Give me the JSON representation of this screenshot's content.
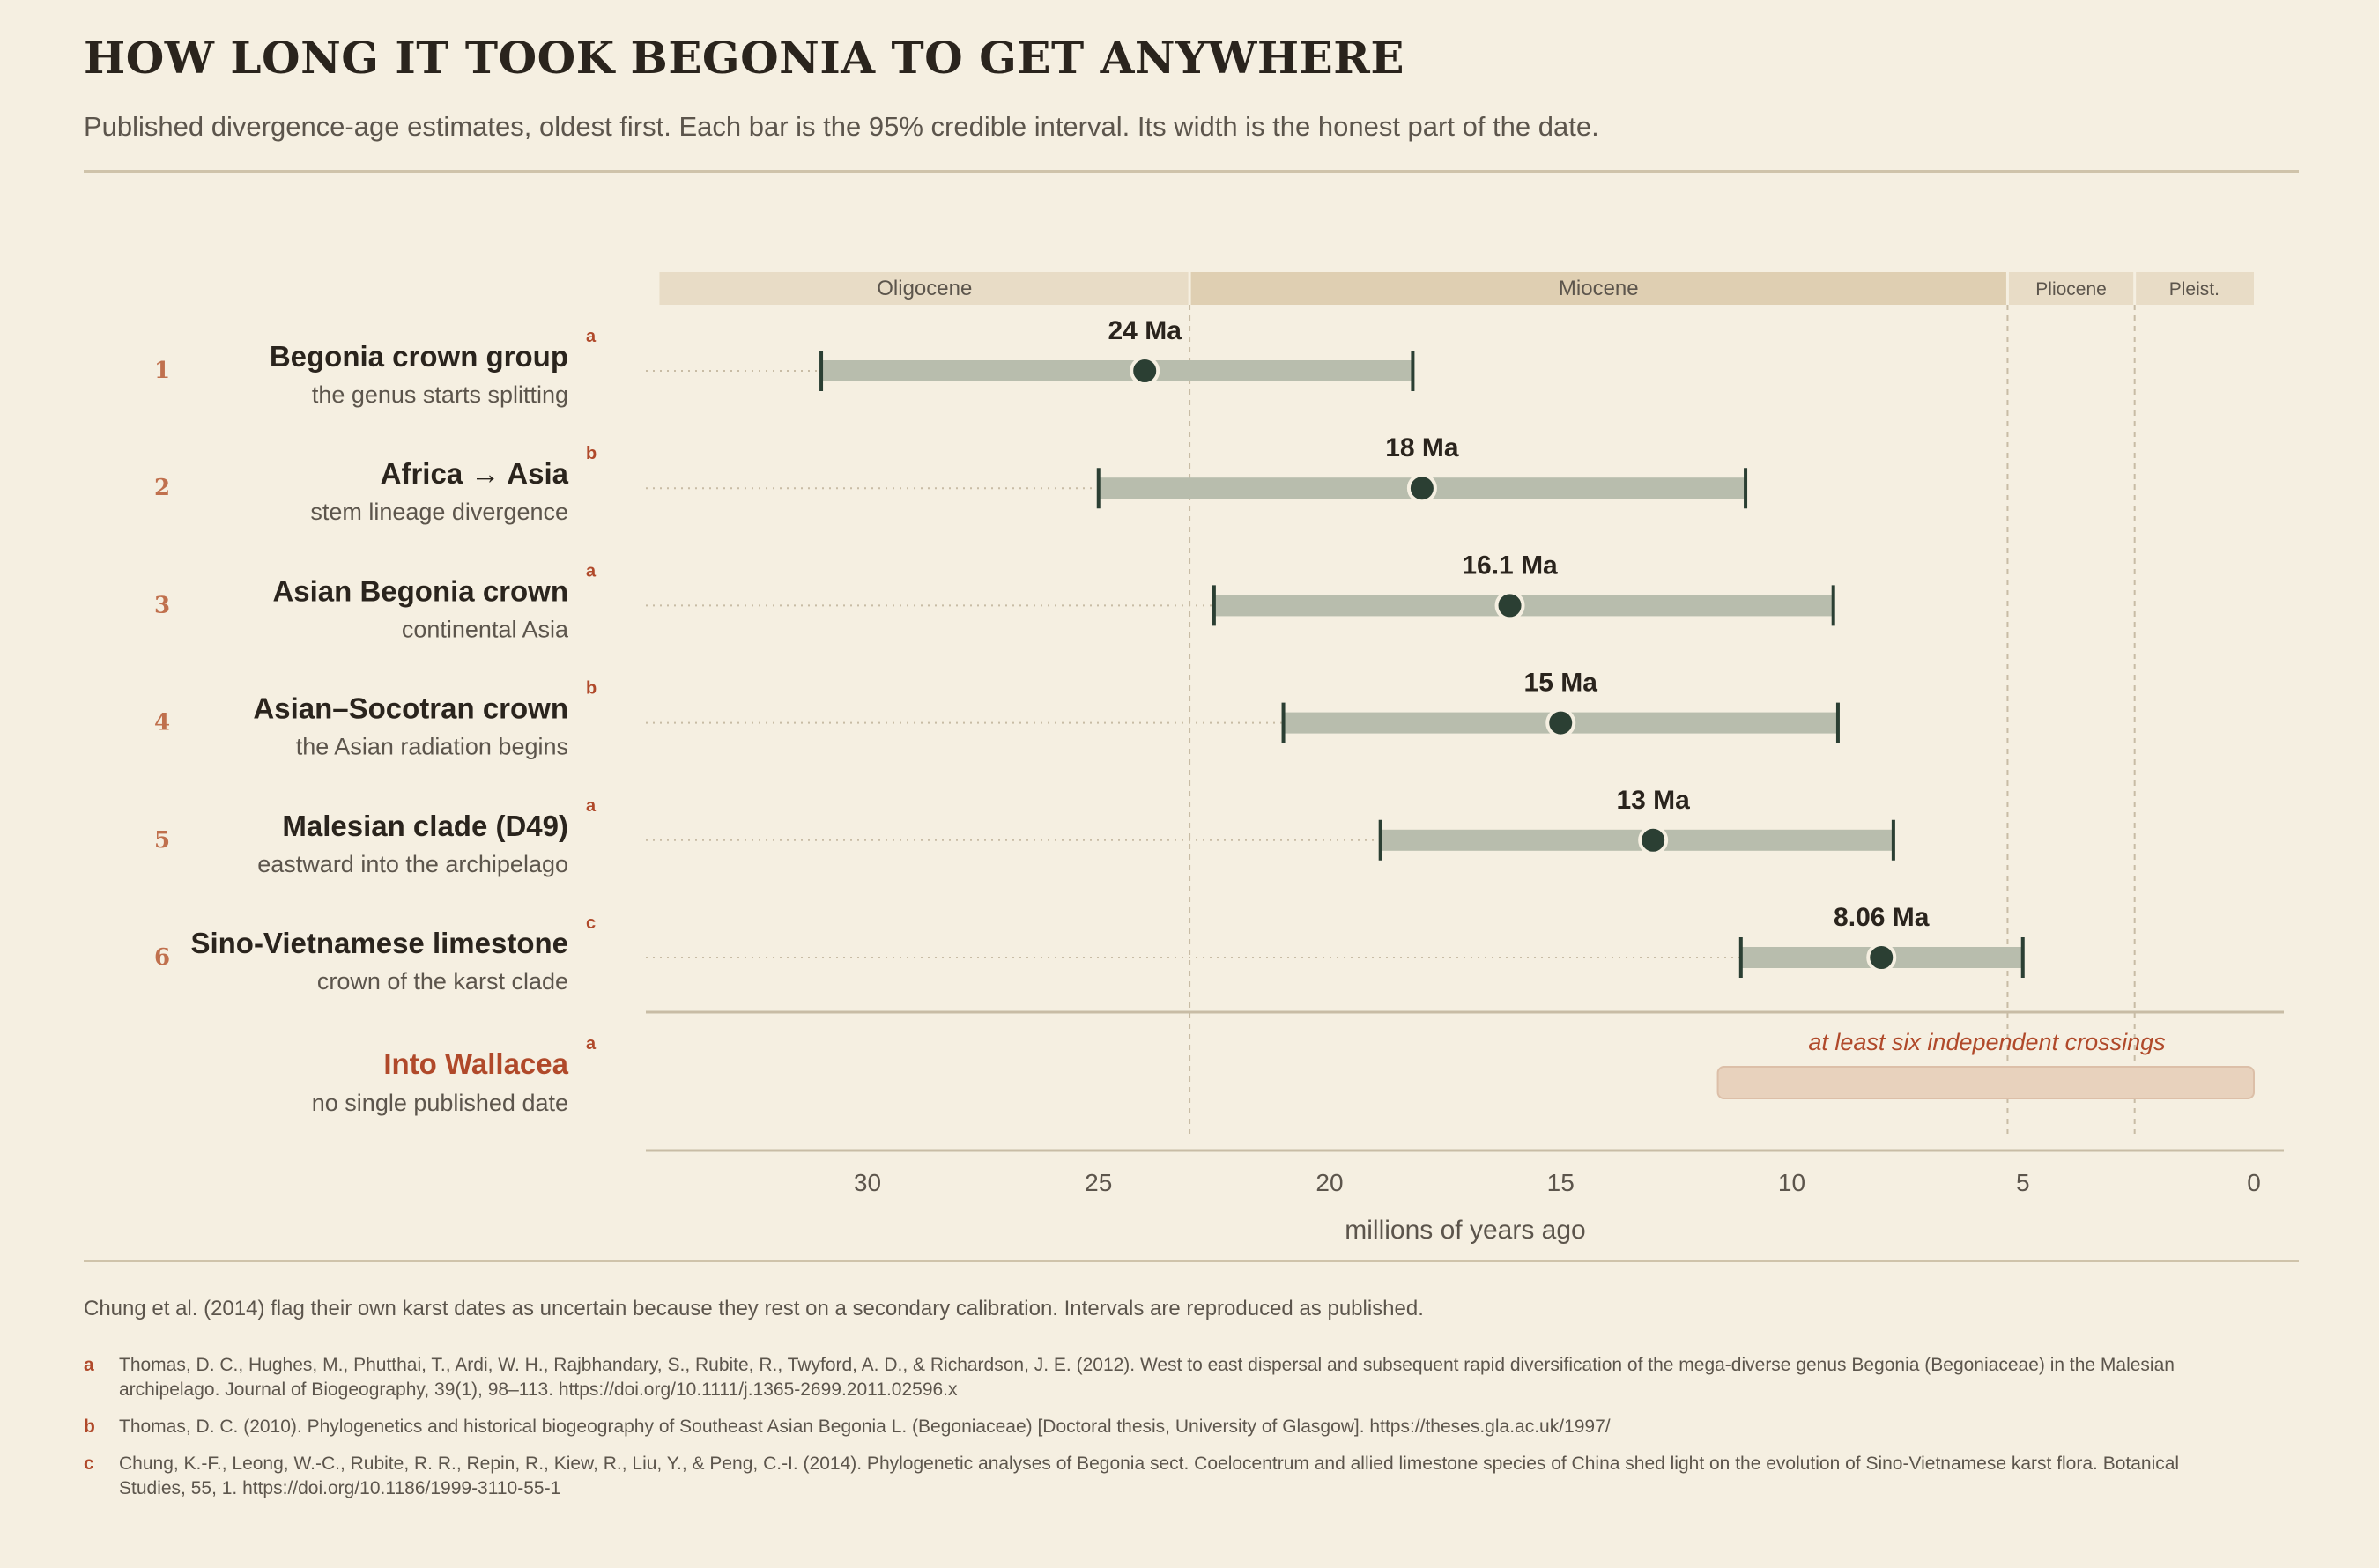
{
  "header": {
    "title": "HOW LONG IT TOOK BEGONIA TO GET ANYWHERE",
    "subtitle": "Published divergence-age estimates, oldest first. Each bar is the 95% credible interval. Its width is the honest part of the date."
  },
  "colors": {
    "background": "#f5efe1",
    "interval_bar": "#b8bdad",
    "point_and_whiskers": "#2b3f33",
    "accent": "#b0492a",
    "row_number": "#c0704d",
    "wallacea_band": "#e8d2bd"
  },
  "chart_data": {
    "type": "interval",
    "xlabel": "millions of years ago",
    "x_reversed": true,
    "xlim": [
      34.5,
      0
    ],
    "x_ticks": [
      30,
      25,
      20,
      15,
      10,
      5,
      0
    ],
    "grid": false,
    "epochs": [
      {
        "name": "Oligocene",
        "start": 34.5,
        "end": 23.03
      },
      {
        "name": "Miocene",
        "start": 23.03,
        "end": 5.33
      },
      {
        "name": "Pliocene",
        "start": 5.33,
        "end": 2.58
      },
      {
        "name": "Pleist.",
        "start": 2.58,
        "end": 0
      }
    ],
    "rows": [
      {
        "number": "1",
        "label": "Begonia crown group",
        "sublabel": "the genus starts splitting",
        "ref": "a",
        "estimate": 24,
        "estimate_label": "24 Ma",
        "ci_low": 18.2,
        "ci_high": 31.0
      },
      {
        "number": "2",
        "label": "Africa → Asia",
        "sublabel": "stem lineage divergence",
        "ref": "b",
        "estimate": 18,
        "estimate_label": "18 Ma",
        "ci_low": 11.0,
        "ci_high": 25.0
      },
      {
        "number": "3",
        "label": "Asian Begonia crown",
        "sublabel": "continental Asia",
        "ref": "a",
        "estimate": 16.1,
        "estimate_label": "16.1 Ma",
        "ci_low": 9.1,
        "ci_high": 22.5
      },
      {
        "number": "4",
        "label": "Asian–Socotran crown",
        "sublabel": "the Asian radiation begins",
        "ref": "b",
        "estimate": 15,
        "estimate_label": "15 Ma",
        "ci_low": 9.0,
        "ci_high": 21.0
      },
      {
        "number": "5",
        "label": "Malesian clade (D49)",
        "sublabel": "eastward into the archipelago",
        "ref": "a",
        "estimate": 13,
        "estimate_label": "13 Ma",
        "ci_low": 7.8,
        "ci_high": 18.9
      },
      {
        "number": "6",
        "label": "Sino-Vietnamese limestone",
        "sublabel": "crown of the karst clade",
        "ref": "c",
        "estimate": 8.06,
        "estimate_label": "8.06 Ma",
        "ci_low": 5.0,
        "ci_high": 11.1
      }
    ],
    "undated_row": {
      "label": "Into Wallacea",
      "sublabel": "no single published date",
      "ref": "a",
      "note": "at least six independent crossings",
      "range": [
        11.6,
        0
      ]
    }
  },
  "footer": {
    "caveat": "Chung et al. (2014) flag their own karst dates as uncertain because they rest on a secondary calibration. Intervals are reproduced as published.",
    "references": [
      {
        "key": "a",
        "text": "Thomas, D. C., Hughes, M., Phutthai, T., Ardi, W. H., Rajbhandary, S., Rubite, R., Twyford, A. D., & Richardson, J. E. (2012). West to east dispersal and subsequent rapid diversification of the mega-diverse genus Begonia (Begoniaceae) in the Malesian archipelago. Journal of Biogeography, 39(1), 98–113. https://doi.org/10.1111/j.1365-2699.2011.02596.x"
      },
      {
        "key": "b",
        "text": "Thomas, D. C. (2010). Phylogenetics and historical biogeography of Southeast Asian Begonia L. (Begoniaceae) [Doctoral thesis, University of Glasgow]. https://theses.gla.ac.uk/1997/"
      },
      {
        "key": "c",
        "text": "Chung, K.-F., Leong, W.-C., Rubite, R. R., Repin, R., Kiew, R., Liu, Y., & Peng, C.-I. (2014). Phylogenetic analyses of Begonia sect. Coelocentrum and allied limestone species of China shed light on the evolution of Sino-Vietnamese karst flora. Botanical Studies, 55, 1. https://doi.org/10.1186/1999-3110-55-1"
      }
    ]
  }
}
